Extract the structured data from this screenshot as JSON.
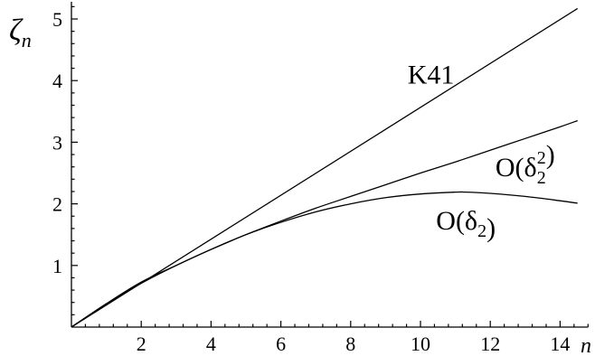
{
  "chart_data": {
    "type": "line",
    "title": "",
    "xlabel": "n",
    "ylabel_symbol": "ζ",
    "ylabel_sub": "n",
    "xlim": [
      0,
      14.8
    ],
    "ylim": [
      0,
      5.4
    ],
    "xticks": [
      2,
      4,
      6,
      8,
      10,
      12,
      14
    ],
    "yticks": [
      1,
      2,
      3,
      4,
      5
    ],
    "grid": false,
    "legend": "none",
    "series": [
      {
        "name": "K41",
        "x": [
          0,
          14.5
        ],
        "y": [
          0,
          5.17
        ]
      },
      {
        "name": "O(δ₂²)",
        "x": [
          0,
          1,
          2,
          3,
          4,
          5,
          6,
          7,
          8,
          9,
          10,
          11,
          12,
          13,
          14,
          14.5
        ],
        "y": [
          0,
          0.37,
          0.71,
          1.0,
          1.26,
          1.5,
          1.72,
          1.93,
          2.12,
          2.31,
          2.5,
          2.68,
          2.87,
          3.06,
          3.25,
          3.35
        ]
      },
      {
        "name": "O(δ₂)",
        "x": [
          0,
          1,
          2,
          3,
          4,
          5,
          6,
          7,
          8,
          9,
          10,
          11,
          11.3,
          12,
          13,
          14,
          14.5
        ],
        "y": [
          0,
          0.38,
          0.73,
          1.0,
          1.26,
          1.5,
          1.7,
          1.87,
          2.0,
          2.1,
          2.16,
          2.19,
          2.19,
          2.17,
          2.12,
          2.05,
          2.01
        ]
      }
    ],
    "annotations": [
      {
        "text": "K41",
        "x": 10.3,
        "y": 3.95
      },
      {
        "text": "O(δ₂²)",
        "x": 13.0,
        "y": 2.45
      },
      {
        "text": "O(δ₂)",
        "x": 11.3,
        "y": 1.58
      }
    ]
  }
}
